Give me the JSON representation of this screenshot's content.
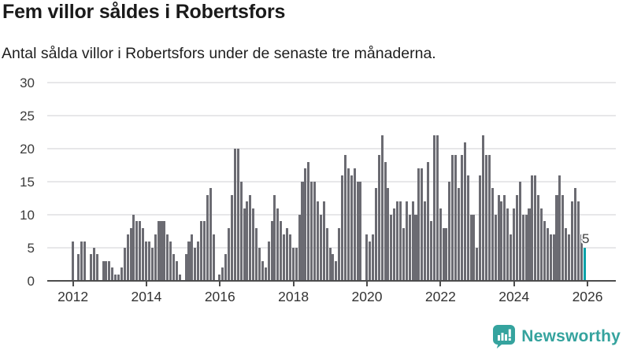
{
  "title": "Fem villor såldes i Robertsfors",
  "subtitle": "Antal sålda villor i Robertsfors under de senaste tre månaderna.",
  "chart_data": {
    "type": "bar",
    "title": "Fem villor såldes i Robertsfors",
    "xlabel": "",
    "ylabel": "",
    "x_start": "2012-01",
    "x_end": "2025-12",
    "interval": "monthly",
    "x_tick_labels": [
      "2012",
      "2014",
      "2016",
      "2018",
      "2020",
      "2022",
      "2024",
      "2026"
    ],
    "y_ticks": [
      0,
      5,
      10,
      15,
      20,
      25,
      30
    ],
    "ylim": [
      0,
      30
    ],
    "grid": true,
    "legend_position": "none",
    "bar_color": "#6b6b72",
    "highlight_color": "#00a1a7",
    "highlight_index": 167,
    "highlight_label": "5",
    "series": [
      {
        "name": "Antal sålda villor (rullande tre månader)",
        "values": [
          6,
          0,
          4,
          6,
          6,
          0,
          4,
          5,
          4,
          0,
          3,
          3,
          3,
          2,
          1,
          1,
          2,
          5,
          7,
          8,
          10,
          9,
          9,
          8,
          6,
          6,
          5,
          7,
          9,
          9,
          9,
          7,
          6,
          4,
          3,
          1,
          0,
          4,
          6,
          7,
          5,
          6,
          9,
          9,
          13,
          14,
          7,
          0,
          1,
          2,
          4,
          8,
          13,
          20,
          20,
          15,
          11,
          12,
          13,
          11,
          8,
          5,
          3,
          2,
          6,
          9,
          13,
          11,
          9,
          7,
          8,
          7,
          5,
          5,
          10,
          15,
          17,
          18,
          15,
          15,
          12,
          10,
          12,
          8,
          5,
          4,
          3,
          8,
          16,
          19,
          17,
          16,
          17,
          15,
          15,
          0,
          7,
          6,
          7,
          14,
          19,
          22,
          18,
          14,
          10,
          11,
          12,
          12,
          8,
          12,
          10,
          12,
          10,
          17,
          17,
          12,
          18,
          9,
          22,
          22,
          11,
          8,
          8,
          15,
          19,
          19,
          14,
          19,
          21,
          16,
          10,
          10,
          5,
          16,
          22,
          19,
          19,
          14,
          10,
          13,
          12,
          13,
          11,
          7,
          11,
          13,
          15,
          10,
          10,
          11,
          16,
          16,
          13,
          11,
          9,
          8,
          7,
          7,
          13,
          16,
          13,
          8,
          7,
          12,
          14,
          12,
          7,
          5
        ]
      }
    ]
  },
  "annotation": {
    "last_value_label": "5"
  },
  "branding": {
    "name": "Newsworthy",
    "icon": "newsworthy-speech-bubble-chart-icon",
    "color": "#35a39e"
  },
  "colors": {
    "background": "#ffffff",
    "bar": "#6b6b72",
    "highlight": "#00a1a7",
    "gridline": "#e7e7e9",
    "axis": "#4d4d4d",
    "text": "#1f1f1f",
    "brand": "#35a39e"
  }
}
